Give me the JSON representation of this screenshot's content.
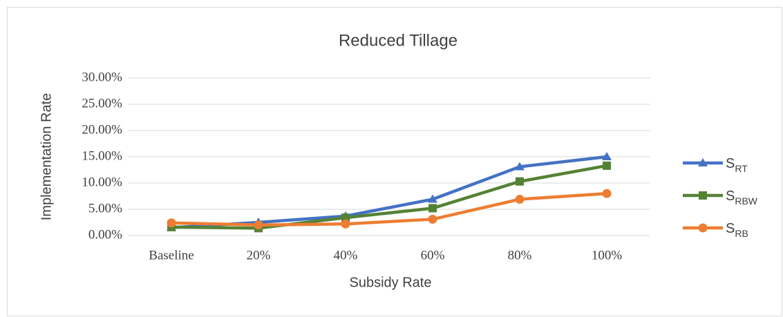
{
  "chart_data": {
    "type": "line",
    "title": "Reduced Tillage",
    "x_label": "Subsidy Rate",
    "y_label": "Implementation Rate",
    "categories": [
      "Baseline",
      "20%",
      "40%",
      "60%",
      "80%",
      "100%"
    ],
    "series": [
      {
        "name": "SRT",
        "color": "#4472c4",
        "marker": "triangle",
        "values": [
          1.5,
          2.5,
          3.7,
          6.9,
          13.1,
          15.0
        ]
      },
      {
        "name": "SRBW",
        "color": "#548235",
        "marker": "square",
        "values": [
          1.6,
          1.4,
          3.4,
          5.2,
          10.3,
          13.3
        ]
      },
      {
        "name": "SRB",
        "color": "#ed7d31",
        "marker": "circle",
        "values": [
          2.4,
          2.0,
          2.2,
          3.1,
          6.9,
          8.0
        ]
      }
    ],
    "ylim": [
      0,
      30
    ],
    "yticks": [
      {
        "value": 0,
        "label": "0.00%"
      },
      {
        "value": 5,
        "label": "5.00%"
      },
      {
        "value": 10,
        "label": "10.00%"
      },
      {
        "value": 15,
        "label": "15.00%"
      },
      {
        "value": 20,
        "label": "20.00%"
      },
      {
        "value": 25,
        "label": "25.00%"
      },
      {
        "value": 30,
        "label": "30.00%"
      }
    ],
    "grid": true,
    "legend": "right"
  }
}
